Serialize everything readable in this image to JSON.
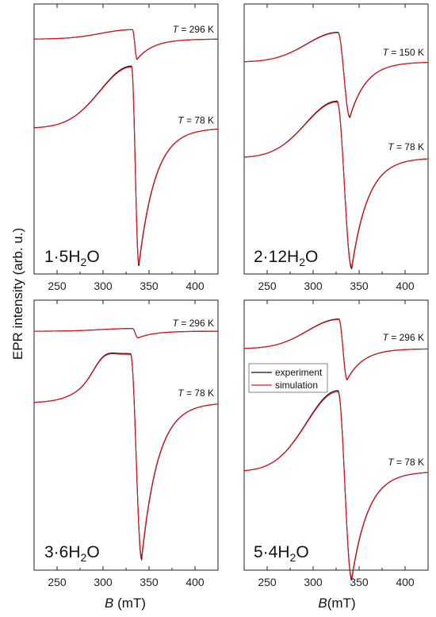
{
  "figure": {
    "ylabel": "EPR intensity (arb. u.)",
    "xlabel_left": {
      "var": "B",
      "unit": " (mT)"
    },
    "xlabel_right": {
      "var": "B",
      "unit": "(mT)"
    }
  },
  "legend": {
    "items": [
      "experiment",
      "simulation"
    ]
  },
  "colors": {
    "experiment": "#111111",
    "simulation": "#e8141e"
  },
  "chart_data": [
    {
      "type": "line",
      "panel": "top-left",
      "sample": {
        "main": "1·5H",
        "sub": "2",
        "tail": "O"
      },
      "xlim": [
        225,
        425
      ],
      "xticks": [
        250,
        300,
        350,
        400
      ],
      "series": [
        {
          "name": "experiment",
          "temperature": "T = 296 K",
          "baseline": 0.87,
          "peak_x": 332,
          "peak": 0.035,
          "trough_x": 337,
          "trough": -0.075
        },
        {
          "name": "experiment",
          "temperature": "T = 78 K",
          "baseline": 0.54,
          "peak_x": 331,
          "peak": 0.23,
          "trough_x": 339,
          "trough": -0.51
        }
      ]
    },
    {
      "type": "line",
      "panel": "top-right",
      "sample": {
        "main": "2·12H",
        "sub": "2",
        "tail": "O"
      },
      "xlim": [
        225,
        425
      ],
      "xticks": [
        250,
        300,
        350,
        400
      ],
      "series": [
        {
          "name": "experiment",
          "temperature": "T = 150 K",
          "baseline": 0.785,
          "peak_x": 327,
          "peak": 0.11,
          "trough_x": 340,
          "trough": -0.205
        },
        {
          "name": "experiment",
          "temperature": "T = 78 K",
          "baseline": 0.43,
          "peak_x": 326,
          "peak": 0.21,
          "trough_x": 342,
          "trough": -0.41
        }
      ]
    },
    {
      "type": "line",
      "panel": "bottom-left",
      "sample": {
        "main": "3·6H",
        "sub": "2",
        "tail": "O"
      },
      "xlim": [
        225,
        425
      ],
      "xticks": [
        250,
        300,
        350,
        400
      ],
      "series": [
        {
          "name": "experiment",
          "temperature": "T = 296 K",
          "baseline": 0.885,
          "peak_x": 332,
          "peak": 0.01,
          "trough_x": 338,
          "trough": -0.025
        },
        {
          "name": "experiment",
          "temperature": "T = 78 K",
          "baseline": 0.62,
          "peak_x": 330,
          "peak": 0.18,
          "trough_x": 342,
          "trough": -0.58,
          "shoulder_x": 300,
          "shoulder": 0.08
        }
      ]
    },
    {
      "type": "line",
      "panel": "bottom-right",
      "sample": {
        "main": "5·4H",
        "sub": "2",
        "tail": "O"
      },
      "xlim": [
        225,
        425
      ],
      "xticks": [
        250,
        300,
        350,
        400
      ],
      "series": [
        {
          "name": "experiment",
          "temperature": "T = 296 K",
          "baseline": 0.82,
          "peak_x": 328,
          "peak": 0.11,
          "trough_x": 337,
          "trough": -0.115
        },
        {
          "name": "experiment",
          "temperature": "T = 78 K",
          "baseline": 0.365,
          "peak_x": 327,
          "peak": 0.3,
          "trough_x": 342,
          "trough": -0.4
        }
      ]
    }
  ]
}
